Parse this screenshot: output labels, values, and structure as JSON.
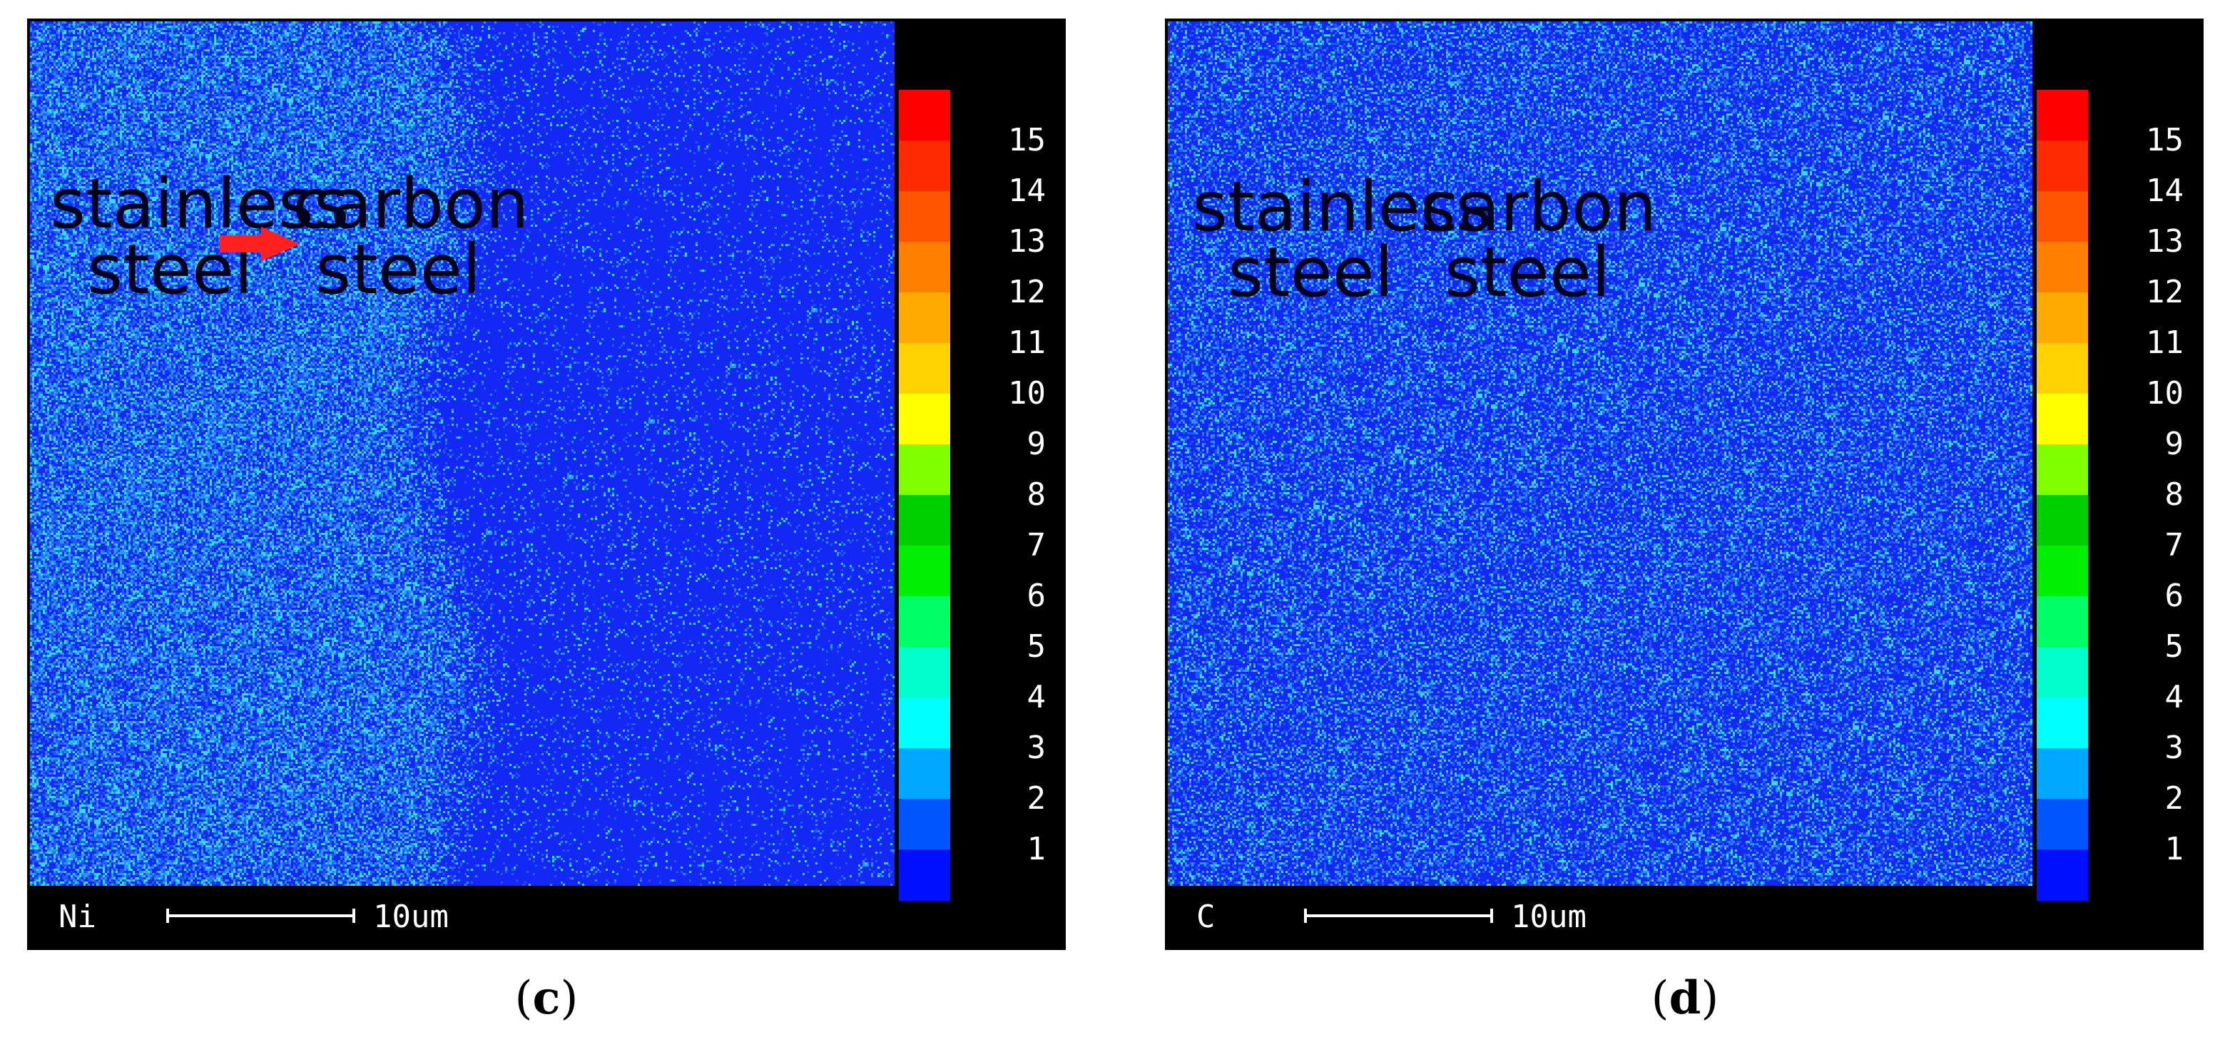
{
  "panels": [
    {
      "id": "c",
      "element": "Ni",
      "scale": "10um",
      "caption_letter": "c",
      "labels": {
        "left_1": "stainless",
        "left_2": "steel",
        "right_1": "carbon",
        "right_2": "steel"
      }
    },
    {
      "id": "d",
      "element": "C",
      "scale": "10um",
      "caption_letter": "d",
      "labels": {
        "left_1": "stainless",
        "left_2": "steel",
        "right_1": "carbon",
        "right_2": "steel"
      }
    }
  ],
  "colorbar": {
    "ticks": [
      "15",
      "14",
      "13",
      "12",
      "11",
      "10",
      "9",
      "8",
      "7",
      "6",
      "5",
      "4",
      "3",
      "2",
      "1"
    ],
    "colors": [
      "#ff0000",
      "#ff2a00",
      "#ff5500",
      "#ff8000",
      "#ffaa00",
      "#ffd200",
      "#ffff00",
      "#80ff00",
      "#00d000",
      "#00ee00",
      "#00ff66",
      "#00ffcc",
      "#00ffff",
      "#00a8ff",
      "#0055ff",
      "#0010ff"
    ]
  },
  "arrow_color": "#ff2020",
  "map_colors": {
    "base": "#1a2aff",
    "speckle_high": "#33ddee",
    "speckle_mid": "#2f8cff"
  }
}
